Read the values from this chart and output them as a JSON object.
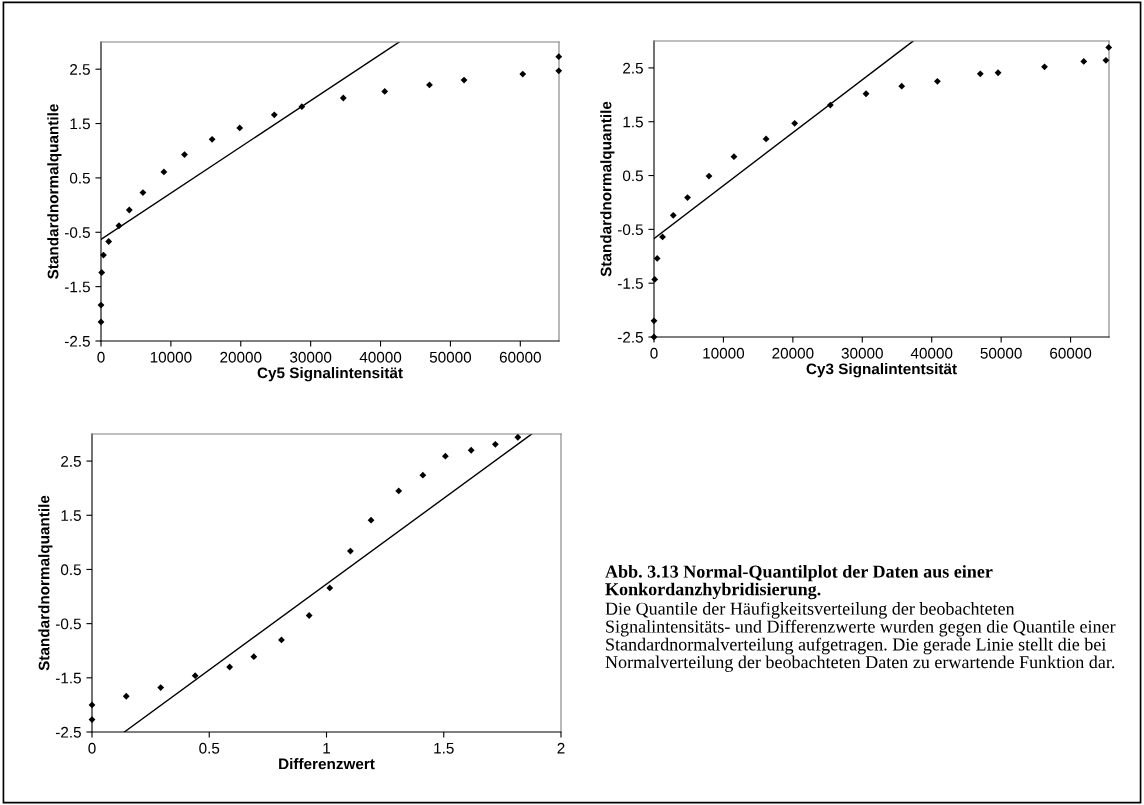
{
  "chart_data": [
    {
      "type": "scatter",
      "xlabel": "Cy5 Signalintensität",
      "ylabel": "Standardnormalquantile",
      "xlim": [
        0,
        65536
      ],
      "ylim": [
        -2.5,
        3
      ],
      "xticks": [
        0,
        10000,
        20000,
        30000,
        40000,
        50000,
        60000
      ],
      "yticks": [
        -2.5,
        -1.5,
        -0.5,
        0.5,
        1.5,
        2.5
      ],
      "series": [
        {
          "type": "scatter",
          "marker": "diamond",
          "color": "#000000",
          "x": [
            0,
            0,
            100,
            350,
            1100,
            2570,
            4050,
            6000,
            9000,
            11950,
            15900,
            19850,
            24800,
            28740,
            34670,
            40600,
            47000,
            51950,
            60350,
            65500,
            65500
          ],
          "values": [
            -2.15,
            -1.84,
            -1.24,
            -0.92,
            -0.67,
            -0.38,
            -0.09,
            0.23,
            0.61,
            0.93,
            1.21,
            1.42,
            1.66,
            1.81,
            1.97,
            2.09,
            2.21,
            2.3,
            2.41,
            2.47,
            2.73
          ]
        },
        {
          "type": "line",
          "marker": "none",
          "color": "#000000",
          "x": [
            0,
            42670
          ],
          "values": [
            -0.63,
            3
          ]
        }
      ]
    },
    {
      "type": "scatter",
      "xlabel": "Cy3 Signalintentsität",
      "ylabel": "Standardnormalquantile",
      "xlim": [
        0,
        65536
      ],
      "ylim": [
        -2.5,
        3
      ],
      "xticks": [
        0,
        10000,
        20000,
        30000,
        40000,
        50000,
        60000
      ],
      "yticks": [
        -2.5,
        -1.5,
        -0.5,
        0.5,
        1.5,
        2.5
      ],
      "series": [
        {
          "type": "scatter",
          "marker": "diamond",
          "color": "#000000",
          "x": [
            0,
            0,
            100,
            460,
            1230,
            2780,
            4830,
            7920,
            11520,
            16140,
            20260,
            25400,
            30540,
            35680,
            40820,
            47000,
            49560,
            56250,
            61900,
            65090,
            65500
          ],
          "values": [
            -2.5,
            -2.2,
            -1.43,
            -1.04,
            -0.64,
            -0.24,
            0.09,
            0.49,
            0.85,
            1.18,
            1.47,
            1.81,
            2.02,
            2.16,
            2.25,
            2.39,
            2.41,
            2.52,
            2.62,
            2.64,
            2.88
          ]
        },
        {
          "type": "line",
          "marker": "none",
          "color": "#000000",
          "x": [
            0,
            37330
          ],
          "values": [
            -0.67,
            3
          ]
        }
      ]
    },
    {
      "type": "scatter",
      "xlabel": "Differenzwert",
      "ylabel": "Standardnormalquantile",
      "xlim": [
        0,
        2
      ],
      "ylim": [
        -2.5,
        3
      ],
      "xticks": [
        0,
        0.5,
        1,
        1.5,
        2
      ],
      "yticks": [
        -2.5,
        -1.5,
        -0.5,
        0.5,
        1.5,
        2.5
      ],
      "series": [
        {
          "type": "scatter",
          "marker": "diamond",
          "color": "#000000",
          "x": [
            0,
            0,
            0.146,
            0.293,
            0.44,
            0.587,
            0.69,
            0.808,
            0.926,
            1.014,
            1.102,
            1.19,
            1.308,
            1.411,
            1.507,
            1.617,
            1.72,
            1.816
          ],
          "values": [
            -2.27,
            -2.0,
            -1.84,
            -1.68,
            -1.46,
            -1.3,
            -1.11,
            -0.8,
            -0.35,
            0.16,
            0.84,
            1.41,
            1.95,
            2.24,
            2.59,
            2.7,
            2.81,
            2.94
          ]
        },
        {
          "type": "line",
          "marker": "none",
          "color": "#000000",
          "x": [
            0.138,
            1.875
          ],
          "values": [
            -2.5,
            3
          ]
        }
      ]
    },
    {
      "type": "other",
      "annotations": [
        "Abb. 3.13 Normal-Quantilplot der Daten aus einer Konkordanzhybridisierung.",
        "Die Quantile der Häufigkeitsverteilung der beobachteten Signalintensitäts- und Differenzwerte wurden gegen die Quantile einer Standardnormalverteilung aufgetragen. Die gerade Linie stellt die bei Normalverteilung der beobachteten Daten zu erwartende Funktion dar."
      ]
    }
  ]
}
